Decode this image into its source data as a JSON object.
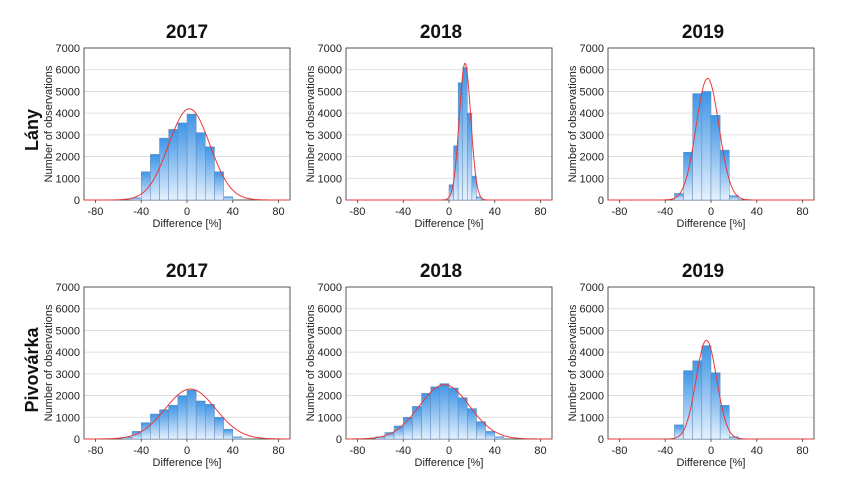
{
  "colors": {
    "bar_light": "#e6f1fd",
    "bar_dark": "#3f95e6",
    "bar_stroke": "#5f88b8",
    "curve": "#e8393b",
    "grid": "#d8d8d8"
  },
  "rows": [
    {
      "label": "Lány"
    },
    {
      "label": "Pivovárka"
    }
  ],
  "chart_data": [
    {
      "type": "bar",
      "title": "2017",
      "xlabel": "Difference [%]",
      "ylabel": "Number of observations",
      "xlim": [
        -90,
        90
      ],
      "ylim": [
        0,
        7000
      ],
      "xticks": [
        "-80",
        "-40",
        "0",
        "40",
        "80"
      ],
      "yticks": [
        "0",
        "1000",
        "2000",
        "3000",
        "4000",
        "5000",
        "6000",
        "7000"
      ],
      "bin_width": 8,
      "bins": [
        {
          "x": -44,
          "value": 100
        },
        {
          "x": -36,
          "value": 1300
        },
        {
          "x": -28,
          "value": 2100
        },
        {
          "x": -20,
          "value": 2850
        },
        {
          "x": -12,
          "value": 3250
        },
        {
          "x": -4,
          "value": 3550
        },
        {
          "x": 4,
          "value": 3950
        },
        {
          "x": 12,
          "value": 3100
        },
        {
          "x": 20,
          "value": 2450
        },
        {
          "x": 28,
          "value": 1300
        },
        {
          "x": 36,
          "value": 150
        }
      ],
      "fit": {
        "mean": 2,
        "sd": 18,
        "peak": 4200
      }
    },
    {
      "type": "bar",
      "title": "2018",
      "xlabel": "Difference [%]",
      "ylabel": "Number of observations",
      "xlim": [
        -90,
        90
      ],
      "ylim": [
        0,
        7000
      ],
      "xticks": [
        "-80",
        "-40",
        "0",
        "40",
        "80"
      ],
      "yticks": [
        "0",
        "1000",
        "2000",
        "3000",
        "4000",
        "5000",
        "6000",
        "7000"
      ],
      "bin_width": 4,
      "bins": [
        {
          "x": 2,
          "value": 700
        },
        {
          "x": 6,
          "value": 2500
        },
        {
          "x": 10,
          "value": 5400
        },
        {
          "x": 14,
          "value": 6100
        },
        {
          "x": 18,
          "value": 4000
        },
        {
          "x": 22,
          "value": 1100
        },
        {
          "x": 26,
          "value": 150
        }
      ],
      "fit": {
        "mean": 14,
        "sd": 5,
        "peak": 6300
      }
    },
    {
      "type": "bar",
      "title": "2019",
      "xlabel": "Difference [%]",
      "ylabel": "Number of observations",
      "xlim": [
        -90,
        90
      ],
      "ylim": [
        0,
        7000
      ],
      "xticks": [
        "-80",
        "-40",
        "0",
        "40",
        "80"
      ],
      "yticks": [
        "0",
        "1000",
        "2000",
        "3000",
        "4000",
        "5000",
        "6000",
        "7000"
      ],
      "bin_width": 8,
      "bins": [
        {
          "x": -28,
          "value": 300
        },
        {
          "x": -20,
          "value": 2200
        },
        {
          "x": -12,
          "value": 4900
        },
        {
          "x": -4,
          "value": 5000
        },
        {
          "x": 4,
          "value": 3900
        },
        {
          "x": 12,
          "value": 2300
        },
        {
          "x": 20,
          "value": 200
        }
      ],
      "fit": {
        "mean": -3,
        "sd": 10,
        "peak": 5600
      }
    },
    {
      "type": "bar",
      "title": "2017",
      "xlabel": "Difference [%]",
      "ylabel": "Number of observations",
      "xlim": [
        -90,
        90
      ],
      "ylim": [
        0,
        7000
      ],
      "xticks": [
        "-80",
        "-40",
        "0",
        "40",
        "80"
      ],
      "yticks": [
        "0",
        "1000",
        "2000",
        "3000",
        "4000",
        "5000",
        "6000",
        "7000"
      ],
      "bin_width": 8,
      "bins": [
        {
          "x": -52,
          "value": 80
        },
        {
          "x": -44,
          "value": 350
        },
        {
          "x": -36,
          "value": 750
        },
        {
          "x": -28,
          "value": 1150
        },
        {
          "x": -20,
          "value": 1350
        },
        {
          "x": -12,
          "value": 1550
        },
        {
          "x": -4,
          "value": 2000
        },
        {
          "x": 4,
          "value": 2250
        },
        {
          "x": 12,
          "value": 1750
        },
        {
          "x": 20,
          "value": 1600
        },
        {
          "x": 28,
          "value": 1000
        },
        {
          "x": 36,
          "value": 450
        },
        {
          "x": 44,
          "value": 100
        }
      ],
      "fit": {
        "mean": 3,
        "sd": 22,
        "peak": 2300
      }
    },
    {
      "type": "bar",
      "title": "2018",
      "xlabel": "Difference [%]",
      "ylabel": "Number of observations",
      "xlim": [
        -90,
        90
      ],
      "ylim": [
        0,
        7000
      ],
      "xticks": [
        "-80",
        "-40",
        "0",
        "40",
        "80"
      ],
      "yticks": [
        "0",
        "1000",
        "2000",
        "3000",
        "4000",
        "5000",
        "6000",
        "7000"
      ],
      "bin_width": 8,
      "bins": [
        {
          "x": -60,
          "value": 100
        },
        {
          "x": -52,
          "value": 300
        },
        {
          "x": -44,
          "value": 600
        },
        {
          "x": -36,
          "value": 1000
        },
        {
          "x": -28,
          "value": 1500
        },
        {
          "x": -20,
          "value": 2100
        },
        {
          "x": -12,
          "value": 2400
        },
        {
          "x": -4,
          "value": 2550
        },
        {
          "x": 4,
          "value": 2350
        },
        {
          "x": 12,
          "value": 1900
        },
        {
          "x": 20,
          "value": 1400
        },
        {
          "x": 28,
          "value": 800
        },
        {
          "x": 36,
          "value": 350
        },
        {
          "x": 44,
          "value": 100
        }
      ],
      "fit": {
        "mean": -4,
        "sd": 22,
        "peak": 2500
      }
    },
    {
      "type": "bar",
      "title": "2019",
      "xlabel": "Difference [%]",
      "ylabel": "Number of observations",
      "xlim": [
        -90,
        90
      ],
      "ylim": [
        0,
        7000
      ],
      "xticks": [
        "-80",
        "-40",
        "0",
        "40",
        "80"
      ],
      "yticks": [
        "0",
        "1000",
        "2000",
        "3000",
        "4000",
        "5000",
        "6000",
        "7000"
      ],
      "bin_width": 8,
      "bins": [
        {
          "x": -28,
          "value": 650
        },
        {
          "x": -20,
          "value": 3150
        },
        {
          "x": -12,
          "value": 3600
        },
        {
          "x": -4,
          "value": 4300
        },
        {
          "x": 4,
          "value": 3050
        },
        {
          "x": 12,
          "value": 1550
        },
        {
          "x": 20,
          "value": 100
        }
      ],
      "fit": {
        "mean": -4,
        "sd": 9,
        "peak": 4550
      }
    }
  ]
}
